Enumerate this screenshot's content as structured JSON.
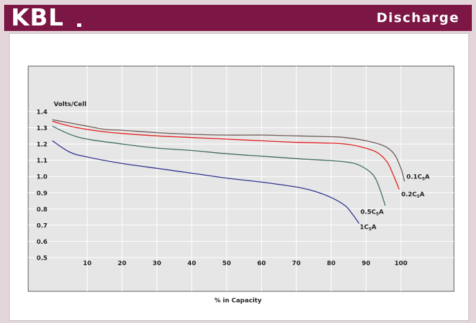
{
  "brand": "KBL",
  "page_title": "Discharge",
  "chart_data": {
    "type": "line",
    "title": "",
    "ylabel": "Volts/Cell",
    "xlabel": "% in Capacity",
    "xlim": [
      0,
      110
    ],
    "ylim": [
      0.5,
      1.4
    ],
    "x_ticks": [
      10,
      20,
      30,
      40,
      50,
      60,
      70,
      80,
      90,
      100
    ],
    "y_ticks": [
      0.5,
      0.6,
      0.7,
      0.8,
      0.9,
      1.0,
      1.1,
      1.2,
      1.3,
      1.4
    ],
    "x_tick_labels": [
      "10",
      "20",
      "30",
      "40",
      "50",
      "60",
      "70",
      "80",
      "90",
      "100"
    ],
    "y_tick_labels": [
      "0.5",
      "0.6",
      "0.7",
      "0.8",
      "0.9",
      "1.0",
      "1.1",
      "1.2",
      "1.3",
      "1.4"
    ],
    "grid": true,
    "series": [
      {
        "name": "0.1C5A",
        "label_main": "0.1C",
        "label_sub": "5",
        "label_tail": "A",
        "color": "#6b5a55",
        "x": [
          0,
          5,
          10,
          15,
          20,
          30,
          40,
          50,
          60,
          70,
          80,
          84,
          90,
          95,
          98,
          100,
          101
        ],
        "y": [
          1.35,
          1.33,
          1.31,
          1.29,
          1.285,
          1.27,
          1.26,
          1.255,
          1.255,
          1.25,
          1.245,
          1.24,
          1.22,
          1.19,
          1.14,
          1.05,
          0.97
        ]
      },
      {
        "name": "0.2C5A",
        "label_main": "0.2C",
        "label_sub": "5",
        "label_tail": "A",
        "color": "#e31b1b",
        "x": [
          0,
          5,
          10,
          15,
          20,
          30,
          40,
          50,
          60,
          70,
          80,
          84,
          88,
          93,
          96,
          98,
          99.5
        ],
        "y": [
          1.34,
          1.31,
          1.29,
          1.275,
          1.265,
          1.25,
          1.24,
          1.23,
          1.22,
          1.21,
          1.205,
          1.2,
          1.185,
          1.15,
          1.09,
          1.0,
          0.92
        ]
      },
      {
        "name": "0.5C5A",
        "label_main": "0.5C",
        "label_sub": "5",
        "label_tail": "A",
        "color": "#3d6a5a",
        "x": [
          0,
          5,
          10,
          20,
          30,
          40,
          50,
          60,
          70,
          78,
          84,
          88,
          92,
          94,
          95.5
        ],
        "y": [
          1.31,
          1.26,
          1.23,
          1.2,
          1.175,
          1.16,
          1.14,
          1.125,
          1.11,
          1.1,
          1.09,
          1.07,
          1.01,
          0.92,
          0.82
        ]
      },
      {
        "name": "1C5A",
        "label_main": "1C",
        "label_sub": "5",
        "label_tail": "A",
        "color": "#2b2f8f",
        "x": [
          0,
          5,
          10,
          20,
          30,
          40,
          50,
          60,
          70,
          75,
          80,
          84,
          86,
          88
        ],
        "y": [
          1.22,
          1.15,
          1.12,
          1.08,
          1.05,
          1.02,
          0.99,
          0.965,
          0.935,
          0.91,
          0.87,
          0.82,
          0.77,
          0.71
        ]
      }
    ]
  }
}
